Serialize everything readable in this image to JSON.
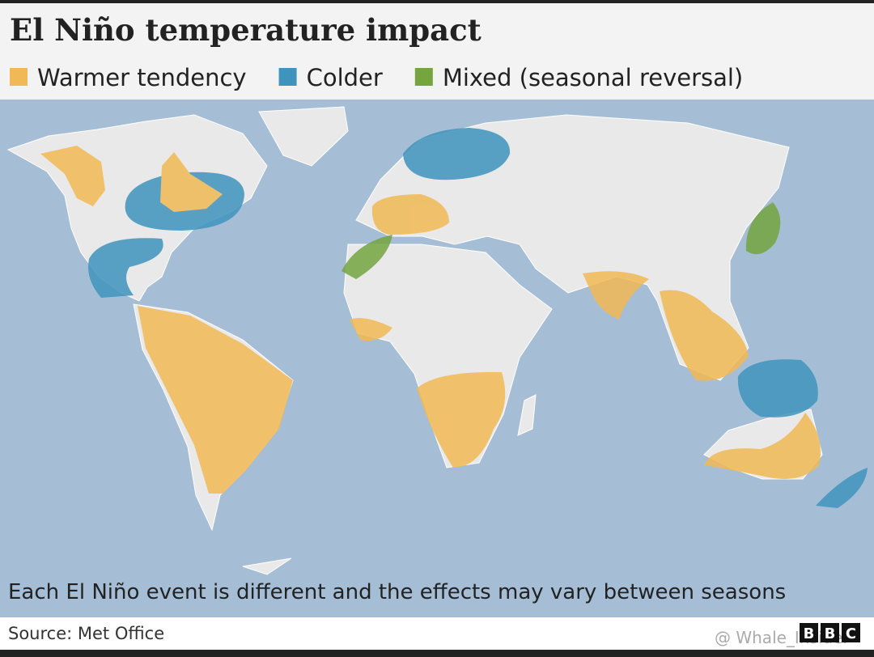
{
  "header": {
    "title": "El Niño temperature impact"
  },
  "legend": [
    {
      "label": "Warmer tendency",
      "color": "#f1b955"
    },
    {
      "label": "Colder",
      "color": "#3f94bd"
    },
    {
      "label": "Mixed (seasonal reversal)",
      "color": "#74a53f"
    }
  ],
  "note": "Each El Niño event is different and the effects may vary between seasons",
  "footer": {
    "source": "Source: Met Office",
    "watermark": "@ Whale_Insider",
    "logo": [
      "B",
      "B",
      "C"
    ]
  }
}
